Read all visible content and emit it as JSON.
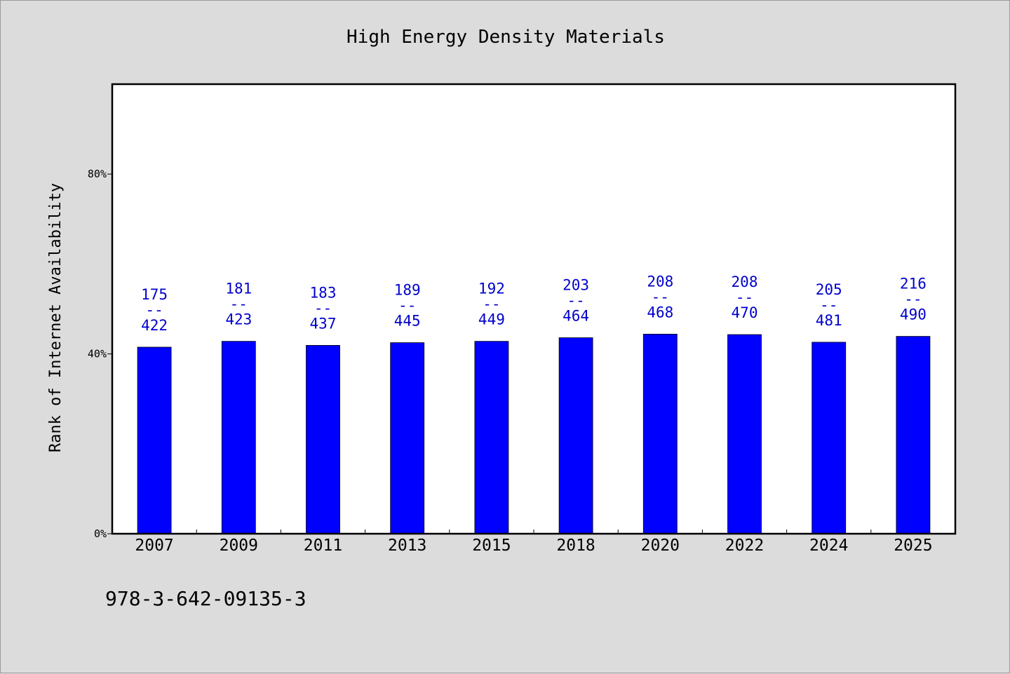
{
  "chart_data": {
    "type": "bar",
    "title": "High Energy Density Materials",
    "xlabel": "",
    "ylabel": "Rank of Internet Availability",
    "categories": [
      "2007",
      "2009",
      "2011",
      "2013",
      "2015",
      "2018",
      "2020",
      "2022",
      "2024",
      "2025"
    ],
    "values": [
      41.5,
      42.8,
      41.9,
      42.5,
      42.8,
      43.6,
      44.4,
      44.3,
      42.6,
      43.9
    ],
    "bar_labels": [
      {
        "top": "175",
        "sep": "--",
        "bottom": "422"
      },
      {
        "top": "181",
        "sep": "--",
        "bottom": "423"
      },
      {
        "top": "183",
        "sep": "--",
        "bottom": "437"
      },
      {
        "top": "189",
        "sep": "--",
        "bottom": "445"
      },
      {
        "top": "192",
        "sep": "--",
        "bottom": "449"
      },
      {
        "top": "203",
        "sep": "--",
        "bottom": "464"
      },
      {
        "top": "208",
        "sep": "--",
        "bottom": "468"
      },
      {
        "top": "208",
        "sep": "--",
        "bottom": "470"
      },
      {
        "top": "205",
        "sep": "--",
        "bottom": "481"
      },
      {
        "top": "216",
        "sep": "--",
        "bottom": "490"
      }
    ],
    "ylim": [
      0,
      100
    ],
    "yticks": [
      0,
      40,
      80
    ],
    "ytick_labels": [
      "0%",
      "40%",
      "80%"
    ],
    "bar_color": "#0000ff",
    "label_color": "#0000cc",
    "grid": false,
    "legend": "none"
  },
  "footer": {
    "isbn": "978-3-642-09135-3"
  }
}
